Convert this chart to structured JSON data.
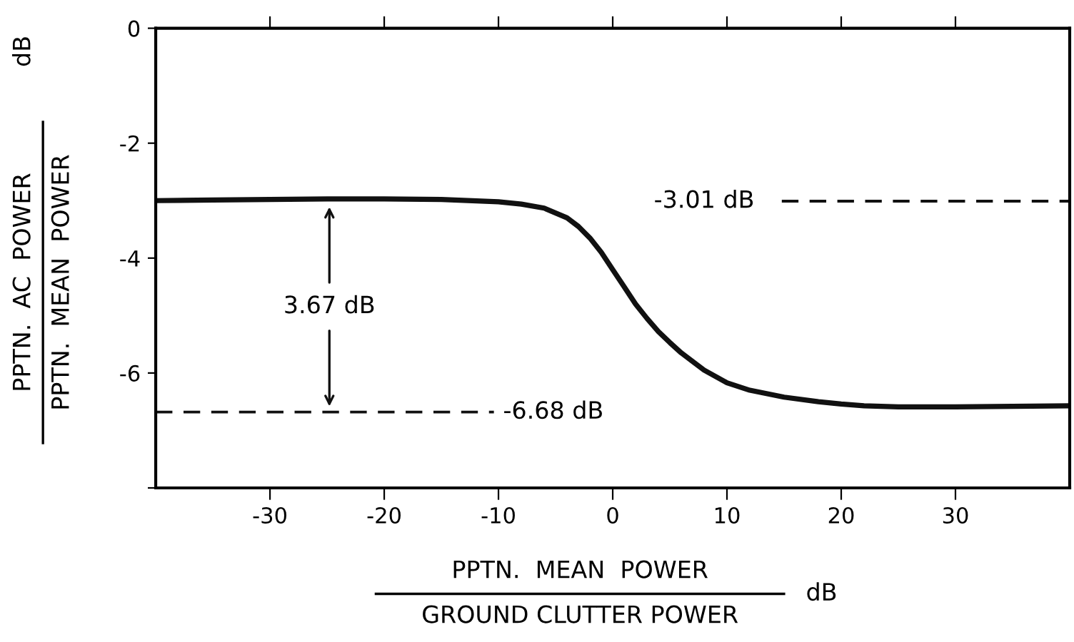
{
  "chart_data": {
    "type": "line",
    "xlabel": "PPTN.  MEAN  POWER\nGROUND CLUTTER POWER\ndB",
    "ylabel": "PPTN.  AC  POWER\nPPTN.  MEAN  POWER\ndB",
    "x": [
      -40,
      -35,
      -30,
      -25,
      -20,
      -15,
      -10,
      -8,
      -6,
      -4,
      -3,
      -2,
      -1,
      0,
      1,
      2,
      3,
      4,
      5,
      6,
      8,
      10,
      12,
      15,
      18,
      20,
      22,
      25,
      30,
      35,
      40
    ],
    "series": [
      {
        "color": "#111111",
        "values": [
          -3.0,
          -2.99,
          -2.98,
          -2.97,
          -2.97,
          -2.98,
          -3.02,
          -3.06,
          -3.13,
          -3.3,
          -3.45,
          -3.65,
          -3.9,
          -4.2,
          -4.5,
          -4.8,
          -5.05,
          -5.28,
          -5.47,
          -5.65,
          -5.95,
          -6.17,
          -6.3,
          -6.42,
          -6.5,
          -6.54,
          -6.57,
          -6.59,
          -6.59,
          -6.58,
          -6.57
        ]
      }
    ],
    "xlim": [
      -40,
      40
    ],
    "ylim": [
      -8,
      0
    ],
    "xticks": [
      -30,
      -20,
      -10,
      0,
      10,
      20,
      30
    ],
    "yticks": [
      {
        "value": 0,
        "label": "0"
      },
      {
        "value": -2,
        "label": "-2"
      },
      {
        "value": -4,
        "label": "-4"
      },
      {
        "value": -6,
        "label": "-6"
      },
      {
        "value": -8,
        "label": null
      }
    ],
    "ref_lines": [
      {
        "axis": "y",
        "value": -3.01,
        "label": "-3.01 dB",
        "line_style": "dashed",
        "color": "#111111"
      },
      {
        "axis": "y",
        "value": -6.68,
        "label": "-6.68 dB",
        "line_style": "dashed",
        "color": "#111111"
      }
    ],
    "annotations": [
      "3.67 dB"
    ],
    "grid": false,
    "legend": false,
    "marker": "none",
    "line_style": "solid"
  }
}
